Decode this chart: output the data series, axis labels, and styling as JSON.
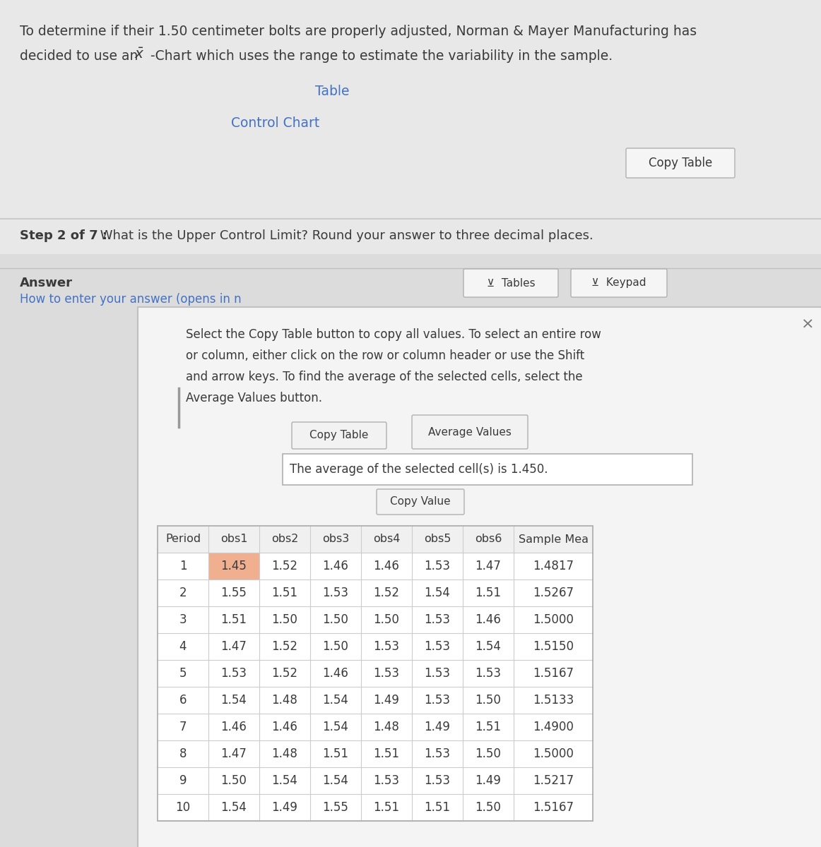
{
  "bg_color": "#dcdcdc",
  "top_bg_color": "#e8e8e8",
  "intro_text_line1": "To determine if their 1.50 centimeter bolts are properly adjusted, Norman & Mayer Manufacturing has",
  "intro_text_line2_pre": "decided to use an ",
  "intro_text_line2_post": " -Chart which uses the range to estimate the variability in the sample.",
  "table_link": "Table",
  "control_chart_link": "Control Chart",
  "copy_table_btn": "Copy Table",
  "step_text_bold": "Step 2 of 7 : ",
  "step_text_normal": " What is the Upper Control Limit? Round your answer to three decimal places.",
  "answer_label": "Answer",
  "how_to_label": "How to enter your answer (opens in n",
  "tables_btn": "Tables",
  "keypad_btn": "Keypad",
  "popup_instruction_lines": [
    "Select the Copy Table button to copy all values. To select an entire row",
    "or column, either click on the row or column header or use the Shift",
    "and arrow keys. To find the average of the selected cells, select the",
    "Average Values button."
  ],
  "copy_table_popup_btn": "Copy Table",
  "average_values_btn": "Average Values",
  "avg_text": "The average of the selected cell(s) is 1.450.",
  "copy_value_btn": "Copy Value",
  "table_headers": [
    "Period",
    "obs1",
    "obs2",
    "obs3",
    "obs4",
    "obs5",
    "obs6",
    "Sample Mea"
  ],
  "table_data": [
    [
      1,
      1.45,
      1.52,
      1.46,
      1.46,
      1.53,
      1.47,
      "1.4817"
    ],
    [
      2,
      1.55,
      1.51,
      1.53,
      1.52,
      1.54,
      1.51,
      "1.5267"
    ],
    [
      3,
      1.51,
      1.5,
      1.5,
      1.5,
      1.53,
      1.46,
      "1.5000"
    ],
    [
      4,
      1.47,
      1.52,
      1.5,
      1.53,
      1.53,
      1.54,
      "1.5150"
    ],
    [
      5,
      1.53,
      1.52,
      1.46,
      1.53,
      1.53,
      1.53,
      "1.5167"
    ],
    [
      6,
      1.54,
      1.48,
      1.54,
      1.49,
      1.53,
      1.5,
      "1.5133"
    ],
    [
      7,
      1.46,
      1.46,
      1.54,
      1.48,
      1.49,
      1.51,
      "1.4900"
    ],
    [
      8,
      1.47,
      1.48,
      1.51,
      1.51,
      1.53,
      1.5,
      "1.5000"
    ],
    [
      9,
      1.5,
      1.54,
      1.54,
      1.53,
      1.53,
      1.49,
      "1.5217"
    ],
    [
      10,
      1.54,
      1.49,
      1.55,
      1.51,
      1.51,
      1.5,
      "1.5167"
    ]
  ],
  "highlighted_cell": [
    0,
    1
  ],
  "highlight_color": "#f0b090",
  "link_color": "#4472c4",
  "text_color": "#3a3a3a",
  "popup_bg": "#f0f0f0",
  "popup_inner_bg": "#ffffff",
  "button_bg": "#f2f2f2",
  "button_border": "#b0b0b0",
  "font_size_intro": 13.5,
  "font_size_step": 13,
  "font_size_table": 12,
  "font_size_popup": 12
}
